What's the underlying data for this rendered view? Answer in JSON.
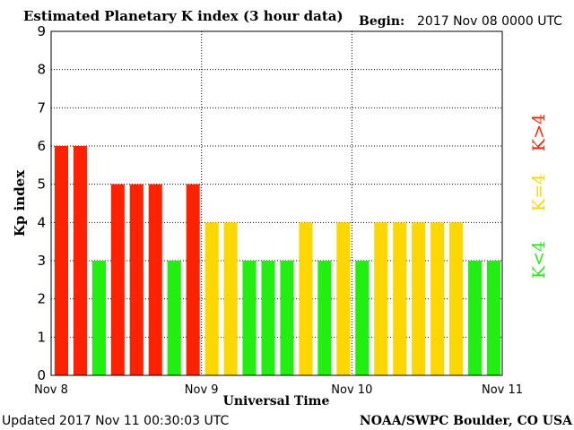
{
  "header": {
    "title": "Estimated Planetary K index (3 hour data)",
    "begin_label": "Begin:",
    "begin_value": "2017 Nov 08 0000 UTC"
  },
  "footer": {
    "updated": "Updated 2017 Nov 11 00:30:03 UTC",
    "credit": "NOAA/SWPC Boulder, CO USA"
  },
  "legend": {
    "above": "K>4",
    "equal": "K=4",
    "below": "K<4"
  },
  "colors": {
    "above": "#ff2200",
    "equal": "#ffd700",
    "below": "#22ee11",
    "grid": "#000000",
    "background": "#ffffff"
  },
  "chart_data": {
    "type": "bar",
    "title": "Estimated Planetary K index (3 hour data)",
    "ylabel": "Kp index",
    "xlabel": "Universal Time",
    "ylim": [
      0,
      9
    ],
    "yticks": [
      "0",
      "1",
      "2",
      "3",
      "4",
      "5",
      "6",
      "7",
      "8",
      "9"
    ],
    "xticks": [
      "Nov 8",
      "Nov 9",
      "Nov 10",
      "Nov 11"
    ],
    "interval_hours": 3,
    "values": [
      6,
      6,
      3,
      5,
      5,
      5,
      3,
      5,
      4,
      4,
      3,
      3,
      3,
      4,
      3,
      4,
      3,
      4,
      4,
      4,
      4,
      4,
      3,
      3
    ],
    "grid": true
  }
}
